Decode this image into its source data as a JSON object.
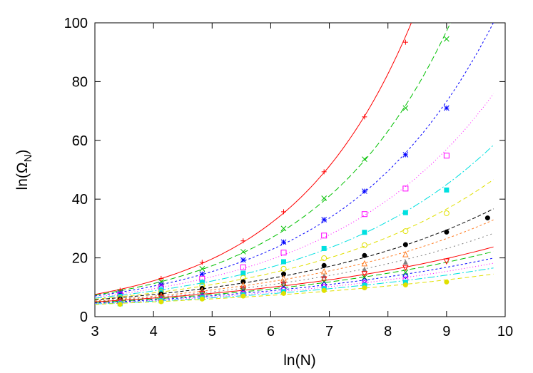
{
  "chart_data": {
    "type": "scatter",
    "xlabel": "ln(N)",
    "ylabel_base": "ln(Ω",
    "ylabel_sub": "N",
    "ylabel_close": ")",
    "xlim": [
      3,
      10
    ],
    "ylim": [
      0,
      100
    ],
    "x_ticks": [
      "3",
      "4",
      "5",
      "6",
      "7",
      "8",
      "9",
      "10"
    ],
    "y_ticks": [
      "0",
      "20",
      "40",
      "60",
      "80",
      "100"
    ],
    "grid": false,
    "legend": "none",
    "x_points": [
      3.43,
      4.13,
      4.83,
      5.53,
      6.22,
      6.91,
      7.6,
      8.3,
      9.0,
      9.7
    ],
    "series": [
      {
        "marker": "plus",
        "color": "#ff0000",
        "dash": "solid",
        "values": [
          9.0,
          13.0,
          18.5,
          25.8,
          35.7,
          49.3,
          68.0,
          93.4,
          null,
          null
        ]
      },
      {
        "marker": "x",
        "color": "#00c000",
        "dash": "8,4",
        "values": [
          8.5,
          11.9,
          16.3,
          22.1,
          30.0,
          40.3,
          53.6,
          71.0,
          94.5,
          null
        ]
      },
      {
        "marker": "star",
        "color": "#0000ff",
        "dash": "3,3",
        "values": [
          8.0,
          10.9,
          14.5,
          19.3,
          25.4,
          33.0,
          42.7,
          55.1,
          71.0,
          null
        ]
      },
      {
        "marker": "open-square",
        "color": "#ff00ff",
        "dash": "1,3",
        "values": [
          7.4,
          9.9,
          12.9,
          16.8,
          21.8,
          27.6,
          34.9,
          43.6,
          54.8,
          null
        ]
      },
      {
        "marker": "filled-square",
        "color": "#00e0e0",
        "dash": "10,3,2,3",
        "values": [
          6.9,
          9.1,
          11.7,
          14.8,
          18.7,
          23.2,
          28.7,
          35.4,
          43.1,
          null
        ]
      },
      {
        "marker": "open-circle",
        "color": "#e0e000",
        "dash": "6,4",
        "values": [
          6.4,
          8.4,
          10.6,
          13.2,
          16.3,
          19.9,
          24.3,
          29.1,
          35.2,
          null
        ]
      },
      {
        "marker": "filled-circle",
        "color": "#000000",
        "dash": "5,3",
        "values": [
          6.0,
          7.7,
          9.6,
          11.9,
          14.5,
          17.4,
          20.8,
          24.5,
          28.8,
          33.6
        ]
      },
      {
        "marker": "open-triangle",
        "color": "#ff7f27",
        "dash": "3,3",
        "values": [
          5.7,
          7.2,
          8.9,
          10.8,
          13.0,
          15.4,
          18.1,
          21.2,
          null,
          null
        ]
      },
      {
        "marker": "filled-triangle",
        "color": "#808080",
        "dash": "2,4",
        "values": [
          5.4,
          6.8,
          8.3,
          10.0,
          11.8,
          13.9,
          16.2,
          18.6,
          null,
          null
        ]
      },
      {
        "marker": "open-triangle-down",
        "color": "#ff0000",
        "dash": "solid",
        "values": [
          5.2,
          6.5,
          7.8,
          9.3,
          10.9,
          12.7,
          14.5,
          16.6,
          18.8,
          null
        ]
      },
      {
        "marker": "x",
        "color": "#00c000",
        "dash": "8,4",
        "values": [
          5.0,
          6.2,
          7.4,
          8.8,
          10.2,
          11.8,
          13.4,
          15.1,
          null,
          null
        ]
      },
      {
        "marker": "open-diamond",
        "color": "#0000ff",
        "dash": "3,3",
        "values": [
          4.8,
          5.9,
          7.0,
          8.3,
          9.6,
          10.9,
          12.3,
          13.8,
          null,
          null
        ]
      },
      {
        "marker": "open-circle",
        "color": "#ff00ff",
        "dash": "1,3",
        "values": [
          4.6,
          5.6,
          6.7,
          7.8,
          9.0,
          10.2,
          11.4,
          12.7,
          null,
          null
        ]
      },
      {
        "marker": "filled-square",
        "color": "#00e0e0",
        "dash": "10,3,2,3",
        "values": [
          4.4,
          5.4,
          6.4,
          7.4,
          8.5,
          9.5,
          10.6,
          11.7,
          null,
          null
        ]
      },
      {
        "marker": "filled-circle",
        "color": "#e0e000",
        "dash": "6,4",
        "values": [
          4.2,
          5.1,
          6.0,
          7.0,
          7.9,
          8.9,
          9.8,
          10.8,
          11.8,
          null
        ]
      }
    ]
  }
}
